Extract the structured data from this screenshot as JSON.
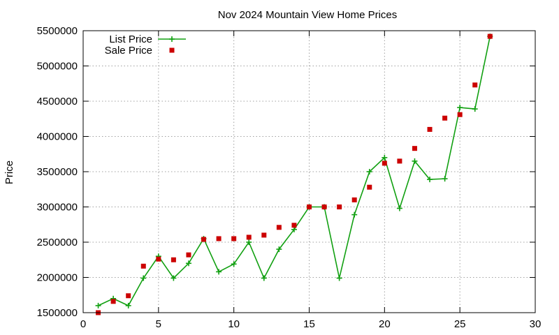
{
  "chart_data": {
    "type": "line",
    "title": "Nov 2024 Mountain View Home Prices",
    "xlabel": "",
    "ylabel": "Price",
    "xlim": [
      0,
      30
    ],
    "ylim": [
      1500000,
      5500000
    ],
    "xticks": [
      0,
      5,
      10,
      15,
      20,
      25,
      30
    ],
    "yticks": [
      1500000,
      2000000,
      2500000,
      3000000,
      3500000,
      4000000,
      4500000,
      5000000,
      5500000
    ],
    "grid": true,
    "legend_position": "top-left",
    "series": [
      {
        "name": "List Price",
        "style": "line-with-plus-markers",
        "color": "#11a011",
        "x": [
          1,
          2,
          3,
          4,
          5,
          6,
          7,
          8,
          9,
          10,
          11,
          12,
          13,
          14,
          15,
          16,
          17,
          18,
          19,
          20,
          21,
          22,
          23,
          24,
          25,
          26,
          27
        ],
        "y": [
          1600000,
          1700000,
          1600000,
          1990000,
          2300000,
          1990000,
          2200000,
          2550000,
          2080000,
          2190000,
          2500000,
          1990000,
          2400000,
          2680000,
          3000000,
          3000000,
          1990000,
          2890000,
          3500000,
          3700000,
          2980000,
          3650000,
          3390000,
          3400000,
          4410000,
          4390000,
          5420000
        ]
      },
      {
        "name": "Sale Price",
        "style": "square-markers",
        "color": "#cc0000",
        "x": [
          1,
          2,
          3,
          4,
          5,
          6,
          7,
          8,
          9,
          10,
          11,
          12,
          13,
          14,
          15,
          16,
          17,
          18,
          19,
          20,
          21,
          22,
          23,
          24,
          25,
          26,
          27
        ],
        "y": [
          1500000,
          1660000,
          1740000,
          2160000,
          2260000,
          2250000,
          2320000,
          2540000,
          2550000,
          2550000,
          2570000,
          2600000,
          2710000,
          2740000,
          3000000,
          3000000,
          3000000,
          3100000,
          3280000,
          3620000,
          3650000,
          3830000,
          4100000,
          4260000,
          4310000,
          4730000,
          5420000
        ]
      }
    ]
  }
}
